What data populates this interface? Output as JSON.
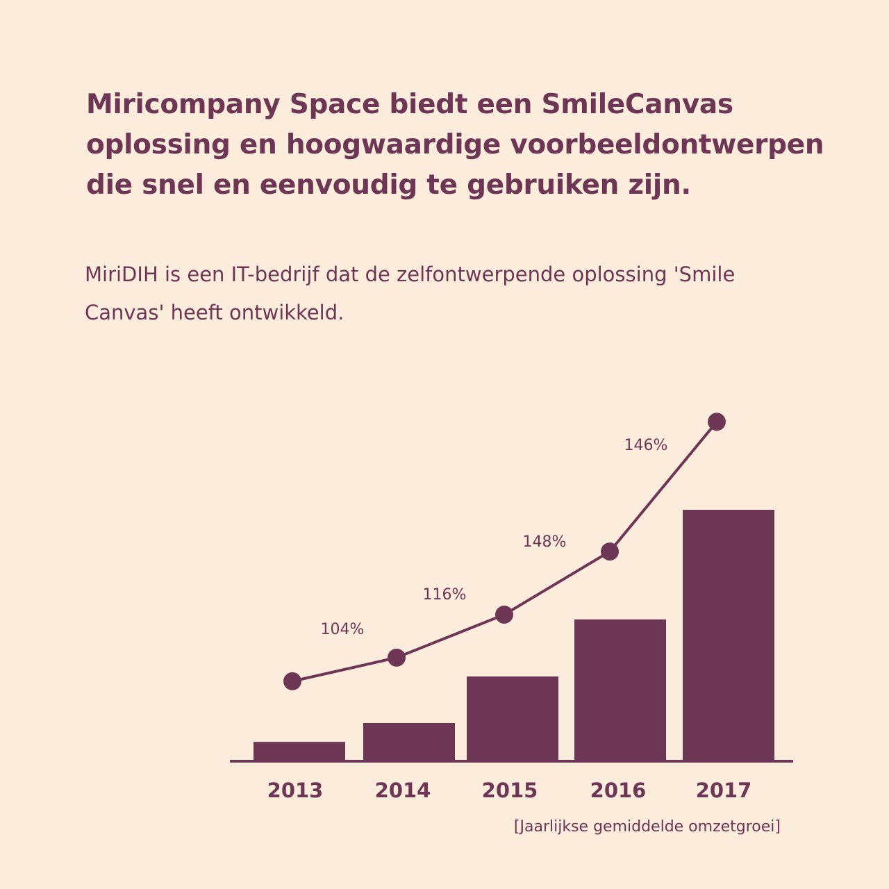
{
  "heading": "Miricompany Space biedt een SmileCanvas oplossing en hoogwaardige voorbeeldontwerpen die snel en eenvoudig te gebruiken zijn.",
  "subtitle": "MiriDIH is een IT-bedrijf dat de zelfontwerpende oplossing 'Smile Canvas' heeft ontwikkeld.",
  "colors": {
    "background": "#fbecdc",
    "accent": "#6e3655"
  },
  "chart_data": {
    "type": "bar",
    "categories": [
      "2013",
      "2014",
      "2015",
      "2016",
      "2017"
    ],
    "series": [
      {
        "type": "bar",
        "values": [
          7.7,
          15.2,
          33.7,
          56.4,
          100
        ]
      },
      {
        "type": "line",
        "values": [
          31.8,
          41.2,
          58.3,
          83.4,
          135
        ]
      }
    ],
    "growth_labels": [
      "104%",
      "116%",
      "148%",
      "146%"
    ],
    "caption": "[Jaarlijkse gemiddelde omzetgroei]",
    "ylim": [
      0,
      140
    ],
    "grid": false,
    "y_axis_shown": false
  }
}
